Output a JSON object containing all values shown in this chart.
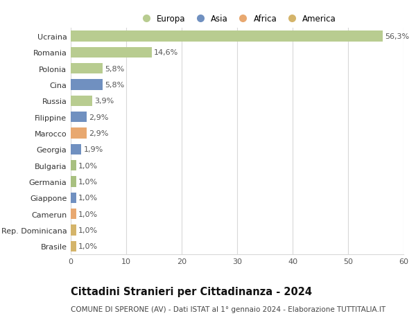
{
  "categories": [
    "Brasile",
    "Rep. Dominicana",
    "Camerun",
    "Giappone",
    "Germania",
    "Bulgaria",
    "Georgia",
    "Marocco",
    "Filippine",
    "Russia",
    "Cina",
    "Polonia",
    "Romania",
    "Ucraina"
  ],
  "values": [
    1.0,
    1.0,
    1.0,
    1.0,
    1.0,
    1.0,
    1.9,
    2.9,
    2.9,
    3.9,
    5.8,
    5.8,
    14.6,
    56.3
  ],
  "labels": [
    "1,0%",
    "1,0%",
    "1,0%",
    "1,0%",
    "1,0%",
    "1,0%",
    "1,9%",
    "2,9%",
    "2,9%",
    "3,9%",
    "5,8%",
    "5,8%",
    "14,6%",
    "56,3%"
  ],
  "colors": [
    "#d4b46a",
    "#d4b46a",
    "#e8a870",
    "#7090c0",
    "#a8c080",
    "#a8c080",
    "#7090c0",
    "#e8a870",
    "#7090c0",
    "#b8cc90",
    "#7090c0",
    "#b8cc90",
    "#b8cc90",
    "#b8cc90"
  ],
  "legend_labels": [
    "Europa",
    "Asia",
    "Africa",
    "America"
  ],
  "legend_colors": [
    "#b8cc90",
    "#7090c0",
    "#e8a870",
    "#d4b46a"
  ],
  "title": "Cittadini Stranieri per Cittadinanza - 2024",
  "subtitle": "COMUNE DI SPERONE (AV) - Dati ISTAT al 1° gennaio 2024 - Elaborazione TUTTITALIA.IT",
  "xlim": [
    0,
    60
  ],
  "xticks": [
    0,
    10,
    20,
    30,
    40,
    50,
    60
  ],
  "background_color": "#ffffff",
  "grid_color": "#d8d8d8",
  "bar_height": 0.65,
  "label_fontsize": 8,
  "tick_fontsize": 8,
  "title_fontsize": 10.5,
  "subtitle_fontsize": 7.5
}
